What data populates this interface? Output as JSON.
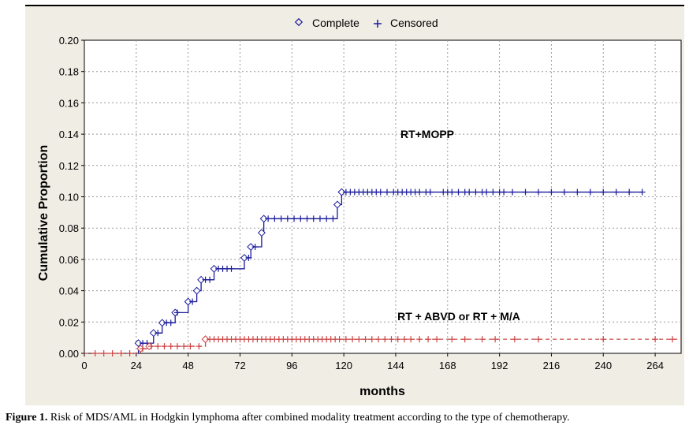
{
  "caption": {
    "label": "Figure 1.",
    "text": " Risk of MDS/AML in Hodgkin lymphoma after combined modality treatment according to the type of chemotherapy."
  },
  "chart_data": {
    "type": "line",
    "xlabel": "months",
    "ylabel": "Cumulative Proportion",
    "xlim": [
      0,
      276
    ],
    "ylim": [
      0,
      0.2
    ],
    "x_ticks": [
      "0",
      "24",
      "48",
      "72",
      "96",
      "120",
      "144",
      "168",
      "192",
      "216",
      "240",
      "264"
    ],
    "y_ticks": [
      "0.00",
      "0.02",
      "0.04",
      "0.06",
      "0.08",
      "0.10",
      "0.12",
      "0.14",
      "0.16",
      "0.18",
      "0.20"
    ],
    "grid": "dashed",
    "legend_position": "top-center",
    "legend": [
      {
        "marker": "diamond",
        "label": "Complete"
      },
      {
        "marker": "plus",
        "label": "Censored"
      }
    ],
    "series": [
      {
        "name": "RT+MOPP",
        "color": "#1a1a9c",
        "line_style": "solid",
        "steps": [
          [
            24,
            0.0
          ],
          [
            25,
            0.0065
          ],
          [
            32,
            0.013
          ],
          [
            36,
            0.0195
          ],
          [
            42,
            0.026
          ],
          [
            48,
            0.033
          ],
          [
            52,
            0.04
          ],
          [
            54,
            0.047
          ],
          [
            60,
            0.054
          ],
          [
            74,
            0.061
          ],
          [
            77,
            0.068
          ],
          [
            82,
            0.077
          ],
          [
            83,
            0.086
          ],
          [
            117,
            0.095
          ],
          [
            119,
            0.103
          ],
          [
            258,
            0.103
          ]
        ],
        "censored": [
          27,
          29,
          34,
          38,
          40,
          43,
          50,
          56,
          58,
          62,
          64,
          66,
          68,
          76,
          79,
          85,
          88,
          91,
          94,
          97,
          100,
          103,
          106,
          109,
          112,
          115,
          121,
          123,
          125,
          127,
          129,
          131,
          133,
          135,
          137,
          140,
          143,
          145,
          147,
          149,
          151,
          153,
          155,
          158,
          160,
          166,
          168,
          170,
          173,
          176,
          178,
          181,
          184,
          186,
          189,
          192,
          194,
          198,
          204,
          210,
          216,
          222,
          228,
          234,
          240,
          246,
          252,
          258
        ]
      },
      {
        "name": "RT + ABVD or RT + M/A",
        "color": "#cc4444",
        "line_style": "dashed",
        "steps": [
          [
            0,
            0.0
          ],
          [
            24,
            0.0
          ],
          [
            26,
            0.003
          ],
          [
            29,
            0.003
          ],
          [
            30,
            0.0045
          ],
          [
            55,
            0.0045
          ],
          [
            56,
            0.009
          ],
          [
            276,
            0.009
          ]
        ],
        "censored": [
          5,
          9,
          13,
          17,
          21,
          27,
          31,
          34,
          37,
          40,
          43,
          46,
          49,
          53,
          58,
          60,
          62,
          64,
          66,
          68,
          70,
          72,
          74,
          76,
          78,
          80,
          82,
          84,
          86,
          88,
          90,
          92,
          94,
          96,
          98,
          100,
          102,
          104,
          106,
          108,
          110,
          112,
          114,
          116,
          118,
          121,
          124,
          127,
          130,
          133,
          136,
          139,
          142,
          145,
          148,
          151,
          155,
          159,
          163,
          170,
          176,
          184,
          190,
          199,
          210,
          240,
          264,
          272
        ]
      }
    ]
  }
}
